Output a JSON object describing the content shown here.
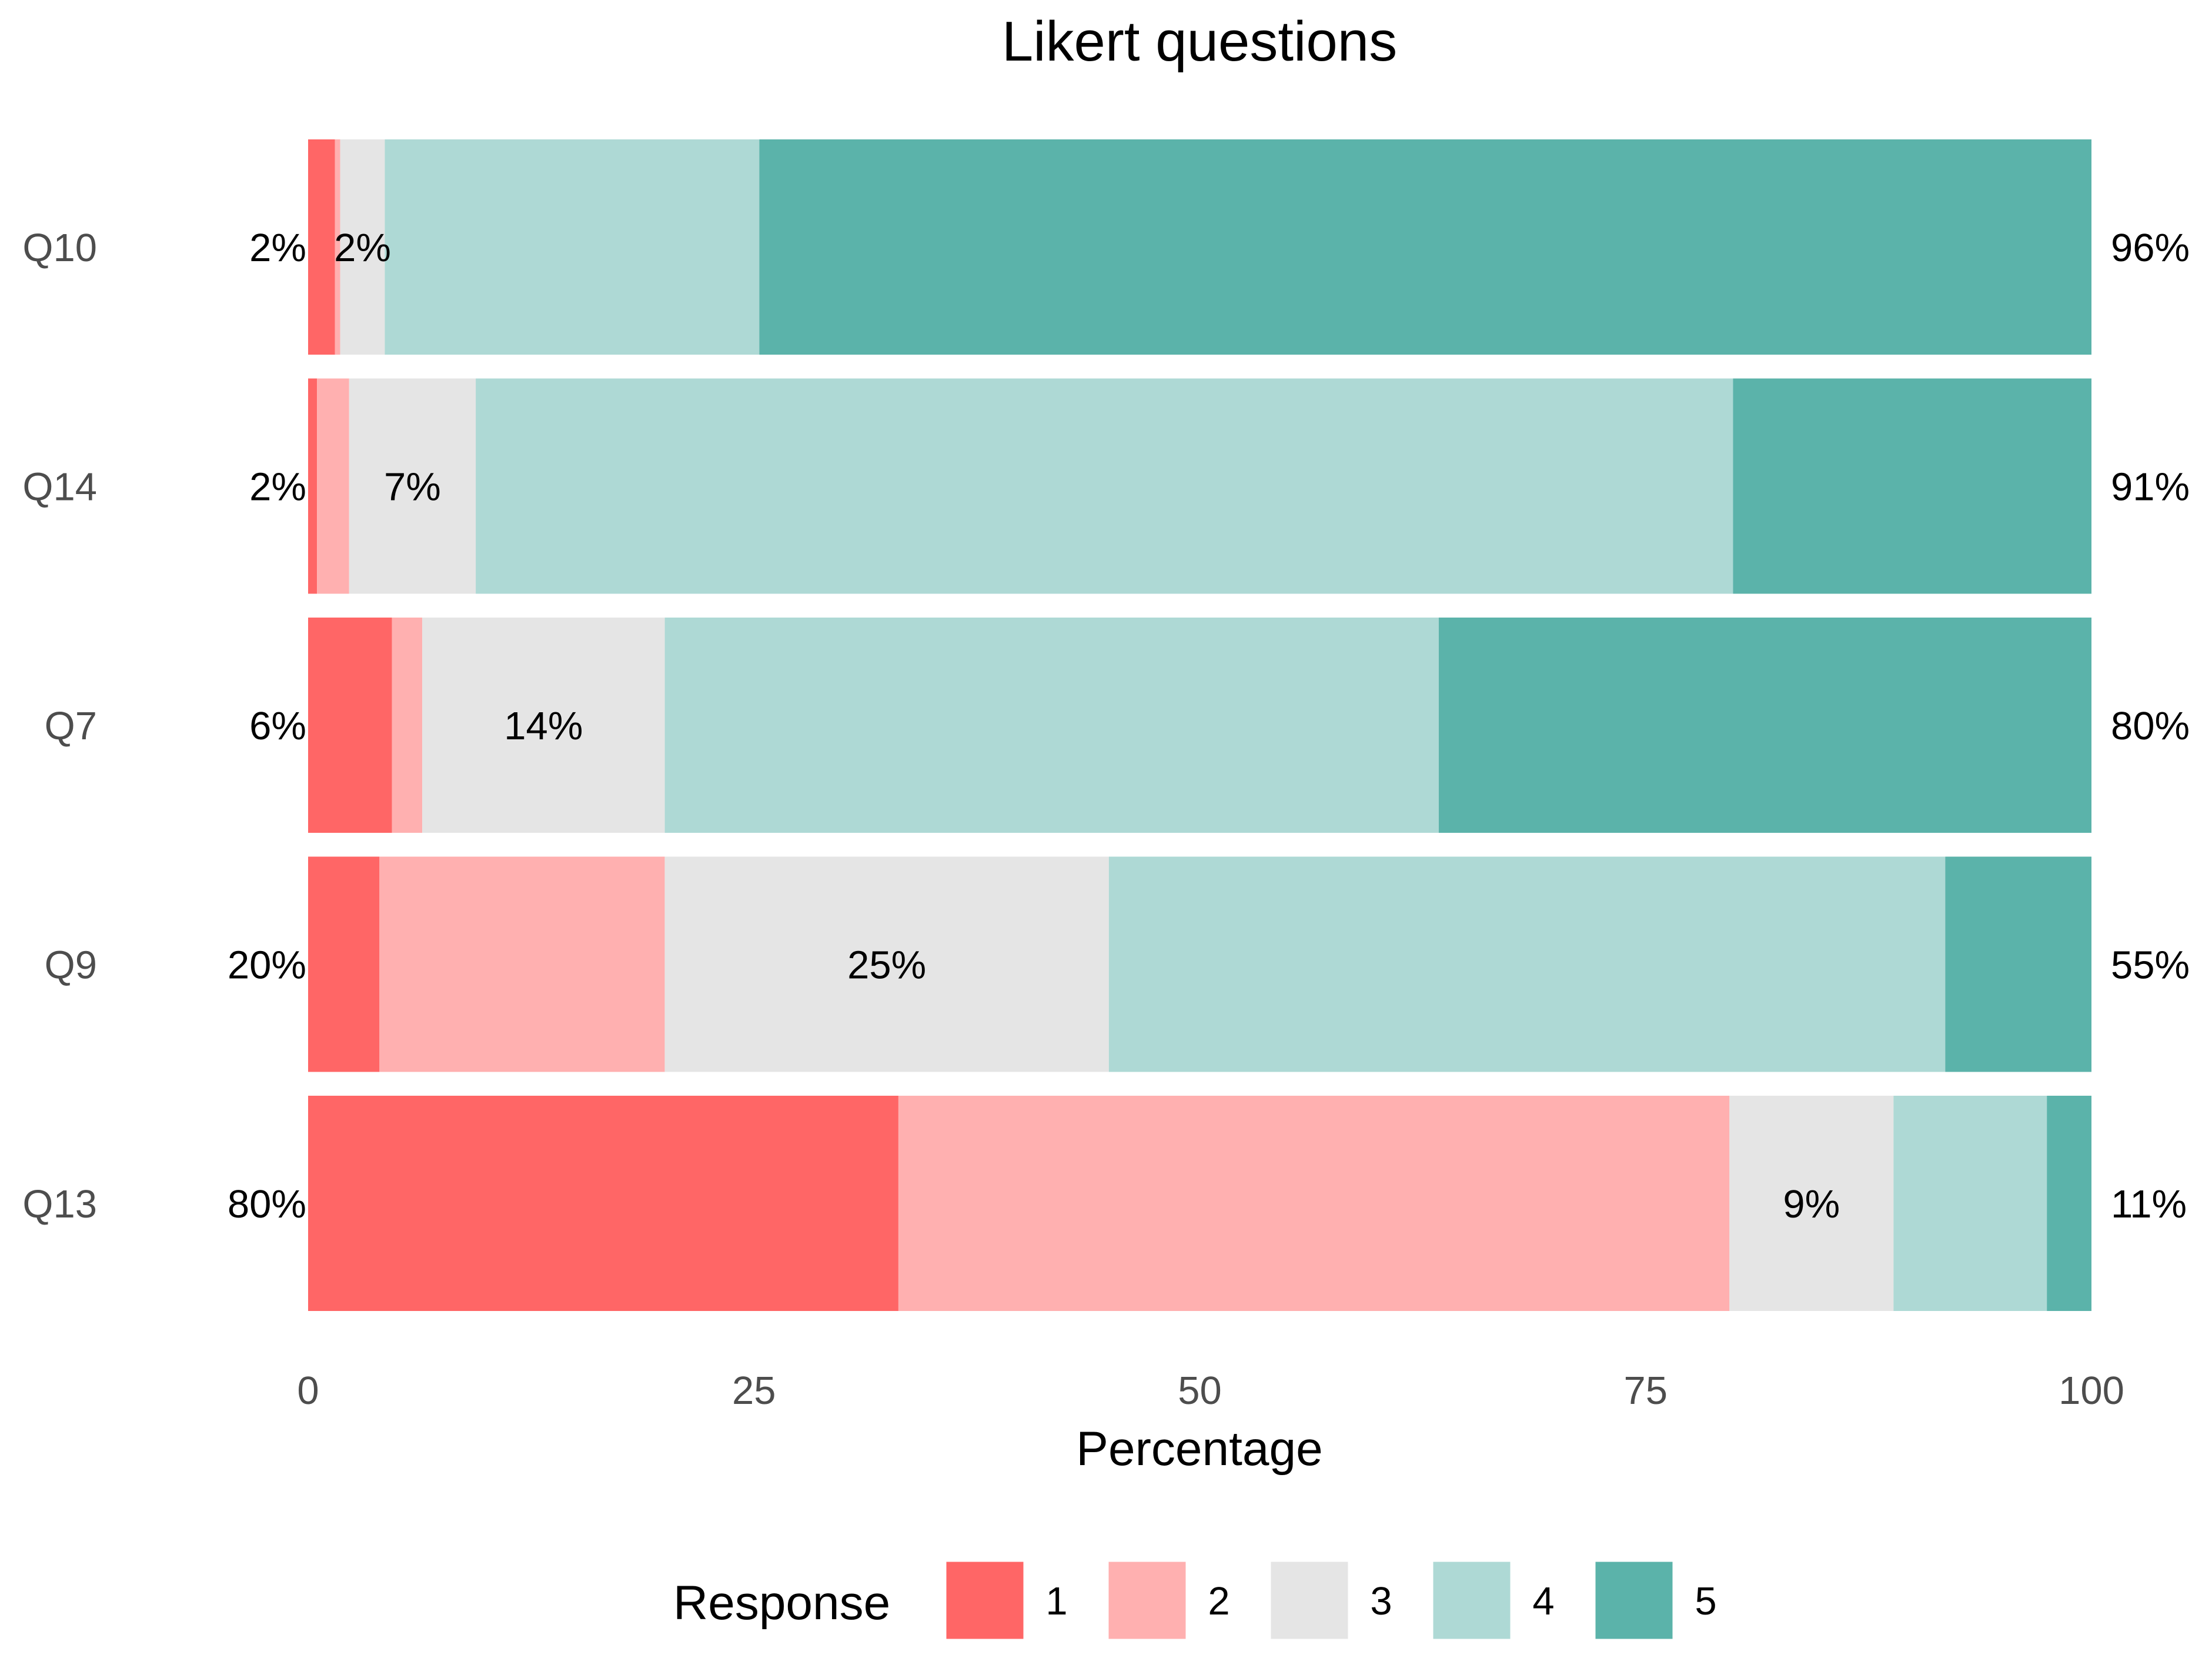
{
  "chart_data": {
    "type": "bar",
    "stacked": true,
    "orientation": "horizontal",
    "title": "Likert questions",
    "xlabel": "Percentage",
    "ylabel": "",
    "xlim": [
      0,
      100
    ],
    "x_ticks": [
      "0",
      "25",
      "50",
      "75",
      "100"
    ],
    "grid": false,
    "legend": {
      "title": "Response",
      "position": "bottom"
    },
    "categories": [
      "Q10",
      "Q14",
      "Q7",
      "Q9",
      "Q13"
    ],
    "series": [
      {
        "name": "1",
        "color": "#FF6666",
        "values": [
          1.5,
          0.5,
          4.7,
          4.0,
          33.1
        ]
      },
      {
        "name": "2",
        "color": "#FFB0B0",
        "values": [
          0.3,
          1.8,
          1.7,
          16.0,
          46.6
        ]
      },
      {
        "name": "3",
        "color": "#E5E5E5",
        "values": [
          2.5,
          7.1,
          13.6,
          24.9,
          9.2
        ]
      },
      {
        "name": "4",
        "color": "#AED9D5",
        "values": [
          21.0,
          70.5,
          43.4,
          46.9,
          8.6
        ]
      },
      {
        "name": "5",
        "color": "#5BB3AA",
        "values": [
          74.7,
          20.1,
          36.6,
          8.2,
          2.5
        ]
      }
    ],
    "low_labels": [
      "2%",
      "2%",
      "6%",
      "20%",
      "80%"
    ],
    "neutral_labels": [
      "2%",
      "7%",
      "14%",
      "25%",
      "9%"
    ],
    "high_labels": [
      "96%",
      "91%",
      "80%",
      "55%",
      "11%"
    ]
  }
}
